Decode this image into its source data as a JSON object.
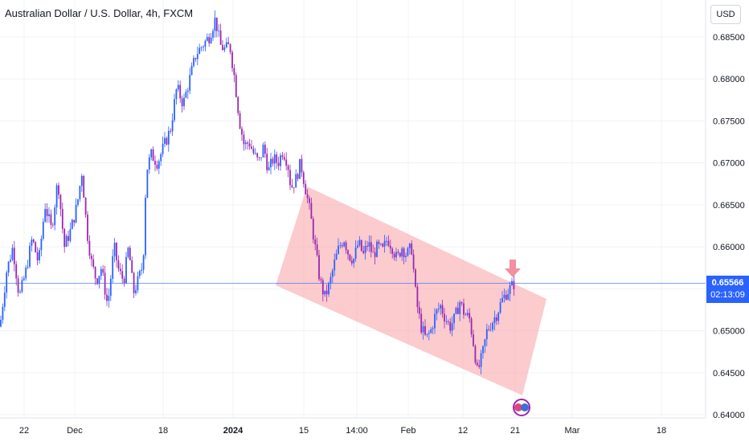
{
  "header": {
    "title": "Australian Dollar / U.S. Dollar, 4h, FXCM",
    "currency_button": "USD"
  },
  "last_price": {
    "price": "0.65566",
    "countdown": "02:13:09",
    "value": 0.65566
  },
  "colors": {
    "up": "#2962ff",
    "down": "#9c27b0",
    "channel_fill": "#f7a1a6",
    "arrow": "#f28fa0",
    "price_line": "#2962ff"
  },
  "chart_data": {
    "type": "candlestick",
    "title": "Australian Dollar / U.S. Dollar, 4h, FXCM",
    "y_axis": {
      "position": "right",
      "ticks": [
        0.685,
        0.68,
        0.675,
        0.67,
        0.665,
        0.66,
        0.655,
        0.65,
        0.645,
        0.64
      ],
      "tick_labels": [
        "0.68500",
        "0.68000",
        "0.67500",
        "0.67000",
        "0.66500",
        "0.66000",
        "0.65500",
        "0.65000",
        "0.64500",
        "0.64000"
      ],
      "range": [
        0.6397,
        0.6895
      ]
    },
    "x_axis": {
      "tick_labels": [
        "22",
        "Dec",
        "18",
        "2024",
        "15",
        "14:00",
        "Feb",
        "12",
        "21",
        "Mar",
        "18"
      ],
      "bold_labels": [
        "2024"
      ]
    },
    "price_path": [
      [
        0,
        0.6505
      ],
      [
        8,
        0.657
      ],
      [
        16,
        0.66
      ],
      [
        24,
        0.654
      ],
      [
        32,
        0.657
      ],
      [
        40,
        0.661
      ],
      [
        48,
        0.658
      ],
      [
        56,
        0.665
      ],
      [
        64,
        0.662
      ],
      [
        72,
        0.668
      ],
      [
        80,
        0.66
      ],
      [
        88,
        0.662
      ],
      [
        96,
        0.665
      ],
      [
        102,
        0.669
      ],
      [
        108,
        0.662
      ],
      [
        114,
        0.658
      ],
      [
        120,
        0.656
      ],
      [
        126,
        0.6575
      ],
      [
        134,
        0.653
      ],
      [
        142,
        0.66
      ],
      [
        148,
        0.657
      ],
      [
        154,
        0.656
      ],
      [
        160,
        0.66
      ],
      [
        166,
        0.6545
      ],
      [
        172,
        0.656
      ],
      [
        178,
        0.658
      ],
      [
        182,
        0.669
      ],
      [
        188,
        0.671
      ],
      [
        196,
        0.67
      ],
      [
        204,
        0.672
      ],
      [
        212,
        0.674
      ],
      [
        220,
        0.679
      ],
      [
        228,
        0.677
      ],
      [
        236,
        0.68
      ],
      [
        244,
        0.683
      ],
      [
        252,
        0.684
      ],
      [
        260,
        0.685
      ],
      [
        268,
        0.6872
      ],
      [
        274,
        0.684
      ],
      [
        280,
        0.6835
      ],
      [
        286,
        0.684
      ],
      [
        292,
        0.68
      ],
      [
        298,
        0.675
      ],
      [
        304,
        0.672
      ],
      [
        310,
        0.6725
      ],
      [
        316,
        0.671
      ],
      [
        322,
        0.67
      ],
      [
        328,
        0.672
      ],
      [
        334,
        0.669
      ],
      [
        340,
        0.6705
      ],
      [
        346,
        0.67
      ],
      [
        352,
        0.6715
      ],
      [
        358,
        0.67
      ],
      [
        362,
        0.667
      ],
      [
        368,
        0.668
      ],
      [
        374,
        0.67
      ],
      [
        380,
        0.667
      ],
      [
        386,
        0.664
      ],
      [
        392,
        0.66
      ],
      [
        398,
        0.656
      ],
      [
        404,
        0.654
      ],
      [
        410,
        0.6555
      ],
      [
        416,
        0.658
      ],
      [
        422,
        0.66
      ],
      [
        428,
        0.661
      ],
      [
        434,
        0.659
      ],
      [
        440,
        0.6585
      ],
      [
        446,
        0.6605
      ],
      [
        452,
        0.659
      ],
      [
        458,
        0.6605
      ],
      [
        464,
        0.659
      ],
      [
        470,
        0.66
      ],
      [
        476,
        0.6595
      ],
      [
        482,
        0.661
      ],
      [
        488,
        0.66
      ],
      [
        494,
        0.6585
      ],
      [
        500,
        0.66
      ],
      [
        506,
        0.659
      ],
      [
        512,
        0.66
      ],
      [
        518,
        0.6535
      ],
      [
        524,
        0.6505
      ],
      [
        530,
        0.649
      ],
      [
        536,
        0.65
      ],
      [
        542,
        0.652
      ],
      [
        548,
        0.653
      ],
      [
        554,
        0.6515
      ],
      [
        560,
        0.6505
      ],
      [
        566,
        0.6515
      ],
      [
        572,
        0.6535
      ],
      [
        578,
        0.652
      ],
      [
        584,
        0.6515
      ],
      [
        590,
        0.648
      ],
      [
        594,
        0.645
      ],
      [
        600,
        0.647
      ],
      [
        606,
        0.65
      ],
      [
        612,
        0.651
      ],
      [
        618,
        0.652
      ],
      [
        624,
        0.6535
      ],
      [
        630,
        0.6545
      ],
      [
        636,
        0.6552
      ],
      [
        640,
        0.65566
      ]
    ],
    "price_line": 0.65566
  }
}
